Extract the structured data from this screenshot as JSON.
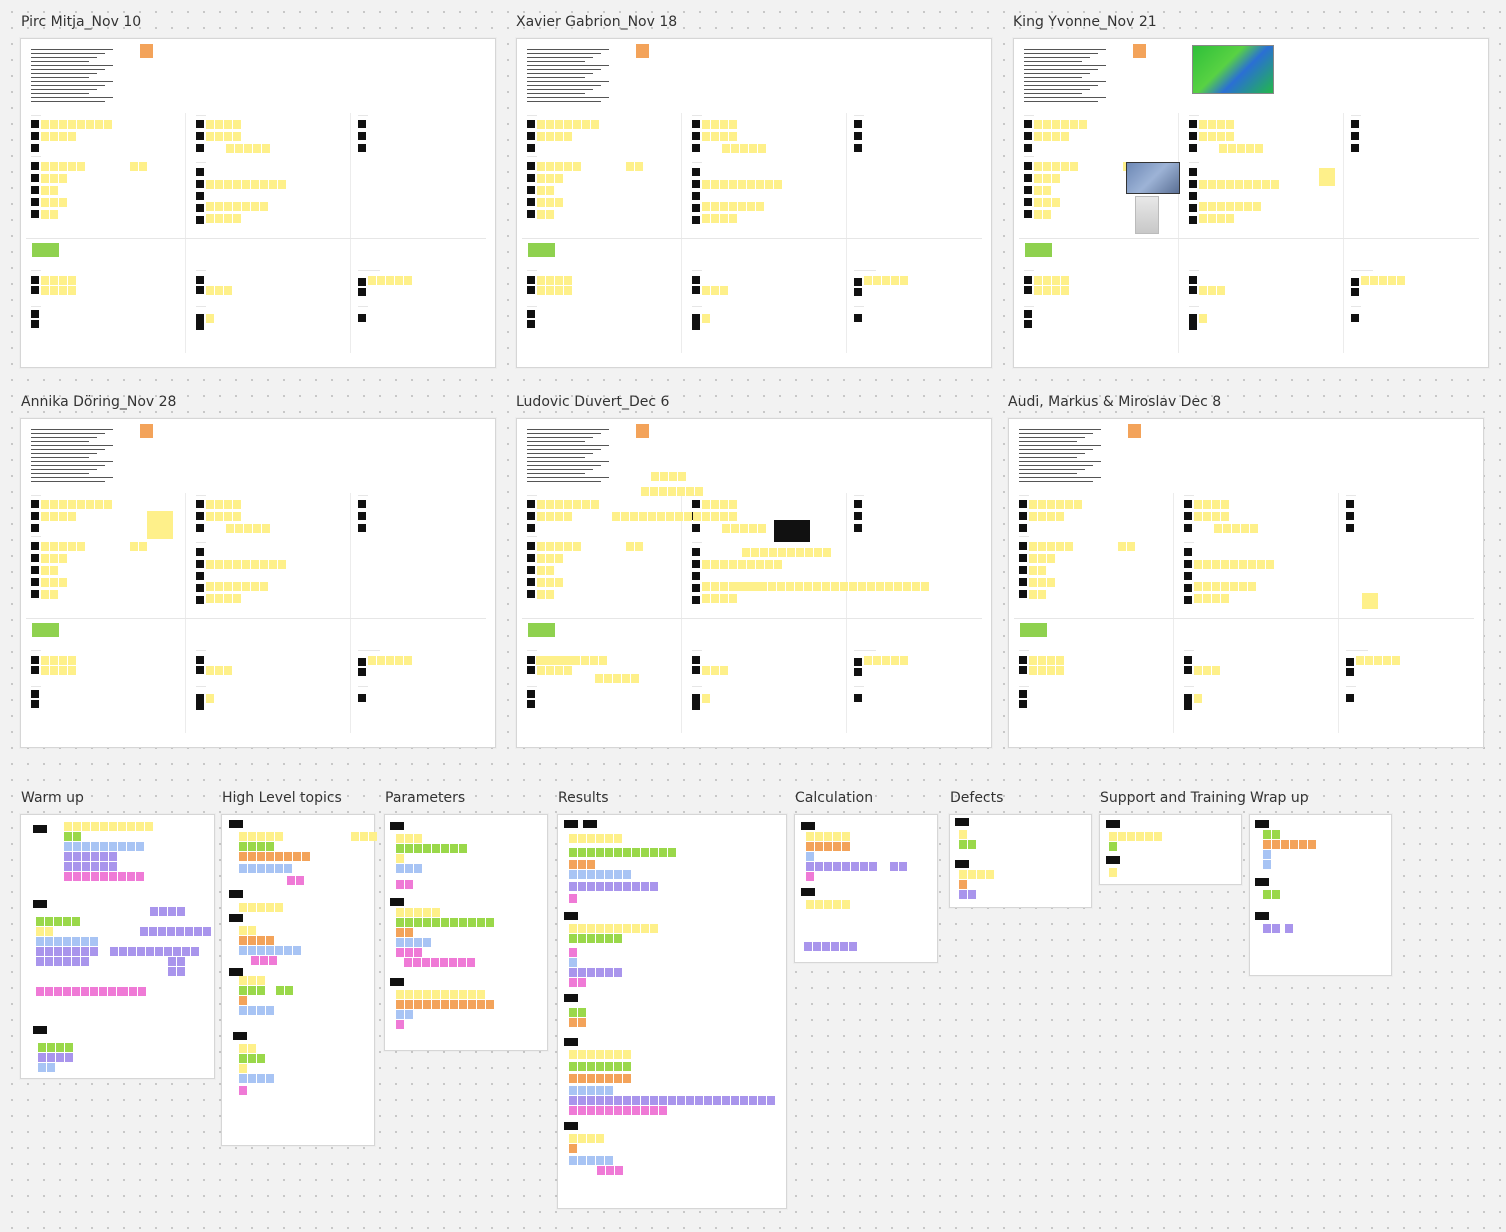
{
  "board": {
    "frames": [
      {
        "id": "f1",
        "title": "Pirc Mitja_Nov 10"
      },
      {
        "id": "f2",
        "title": "Xavier Gabrion_Nov 18"
      },
      {
        "id": "f3",
        "title": "King Yvonne_Nov 21"
      },
      {
        "id": "f4",
        "title": "Annika Döring_Nov 28"
      },
      {
        "id": "f5",
        "title": "Ludovic Duvert_Dec 6"
      },
      {
        "id": "f6",
        "title": "Audi, Markus & Miroslav Dec 8"
      }
    ],
    "sections": [
      {
        "id": "s1",
        "title": "Warm up"
      },
      {
        "id": "s2",
        "title": "High Level topics"
      },
      {
        "id": "s3",
        "title": "Parameters"
      },
      {
        "id": "s4",
        "title": "Results"
      },
      {
        "id": "s5",
        "title": "Calculation"
      },
      {
        "id": "s6",
        "title": "Defects"
      },
      {
        "id": "s7",
        "title": "Support and Training"
      },
      {
        "id": "s8",
        "title": "Wrap up"
      }
    ]
  },
  "colors": {
    "sticky_yellow": "#fef08a",
    "sticky_green": "#9ad84a",
    "sticky_orange": "#f3a35a",
    "sticky_blue": "#a8c4f4",
    "sticky_purple": "#a995ec",
    "sticky_pink": "#ef7ad6",
    "tag_black": "#111111",
    "section_label_green": "#8fd14f"
  }
}
